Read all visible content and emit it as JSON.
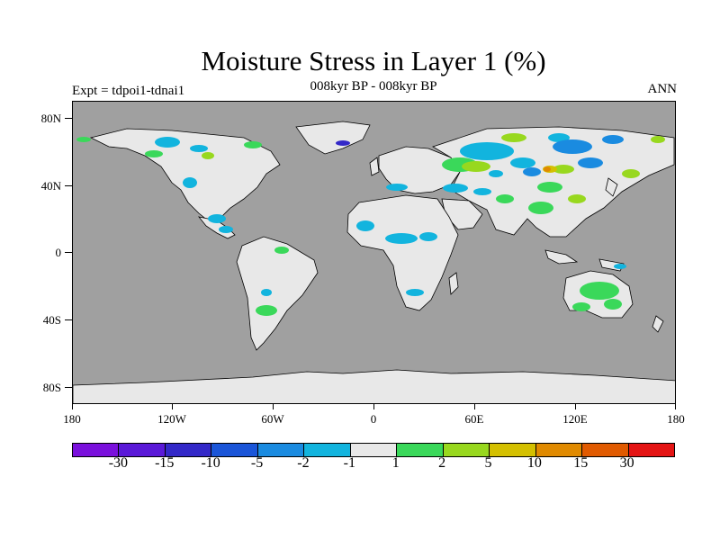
{
  "header": {
    "title": "Moisture Stress in Layer 1 (%)",
    "subtitle": "008kyr BP - 008kyr BP",
    "experiment": "Expt = tdpoi1-tdnai1",
    "period": "ANN"
  },
  "axes": {
    "lat_labels": [
      "80N",
      "40N",
      "0",
      "40S",
      "80S"
    ],
    "lon_labels": [
      "180",
      "120W",
      "60W",
      "0",
      "60E",
      "120E",
      "180"
    ]
  },
  "colorbar": {
    "labels": [
      "-30",
      "-15",
      "-10",
      "-5",
      "-2",
      "-1",
      "1",
      "2",
      "5",
      "10",
      "15",
      "30"
    ],
    "colors": [
      "#7a10dc",
      "#5a19d8",
      "#3328c8",
      "#1a55d8",
      "#1a8be0",
      "#12b4de",
      "#e8e8e8",
      "#3ad85a",
      "#98d81e",
      "#d4c000",
      "#e08a00",
      "#e05a00",
      "#e41414"
    ]
  },
  "map_colors": {
    "ocean": "#a0a0a0",
    "land_neutral": "#e8e8e8",
    "coastline": "#000000"
  }
}
